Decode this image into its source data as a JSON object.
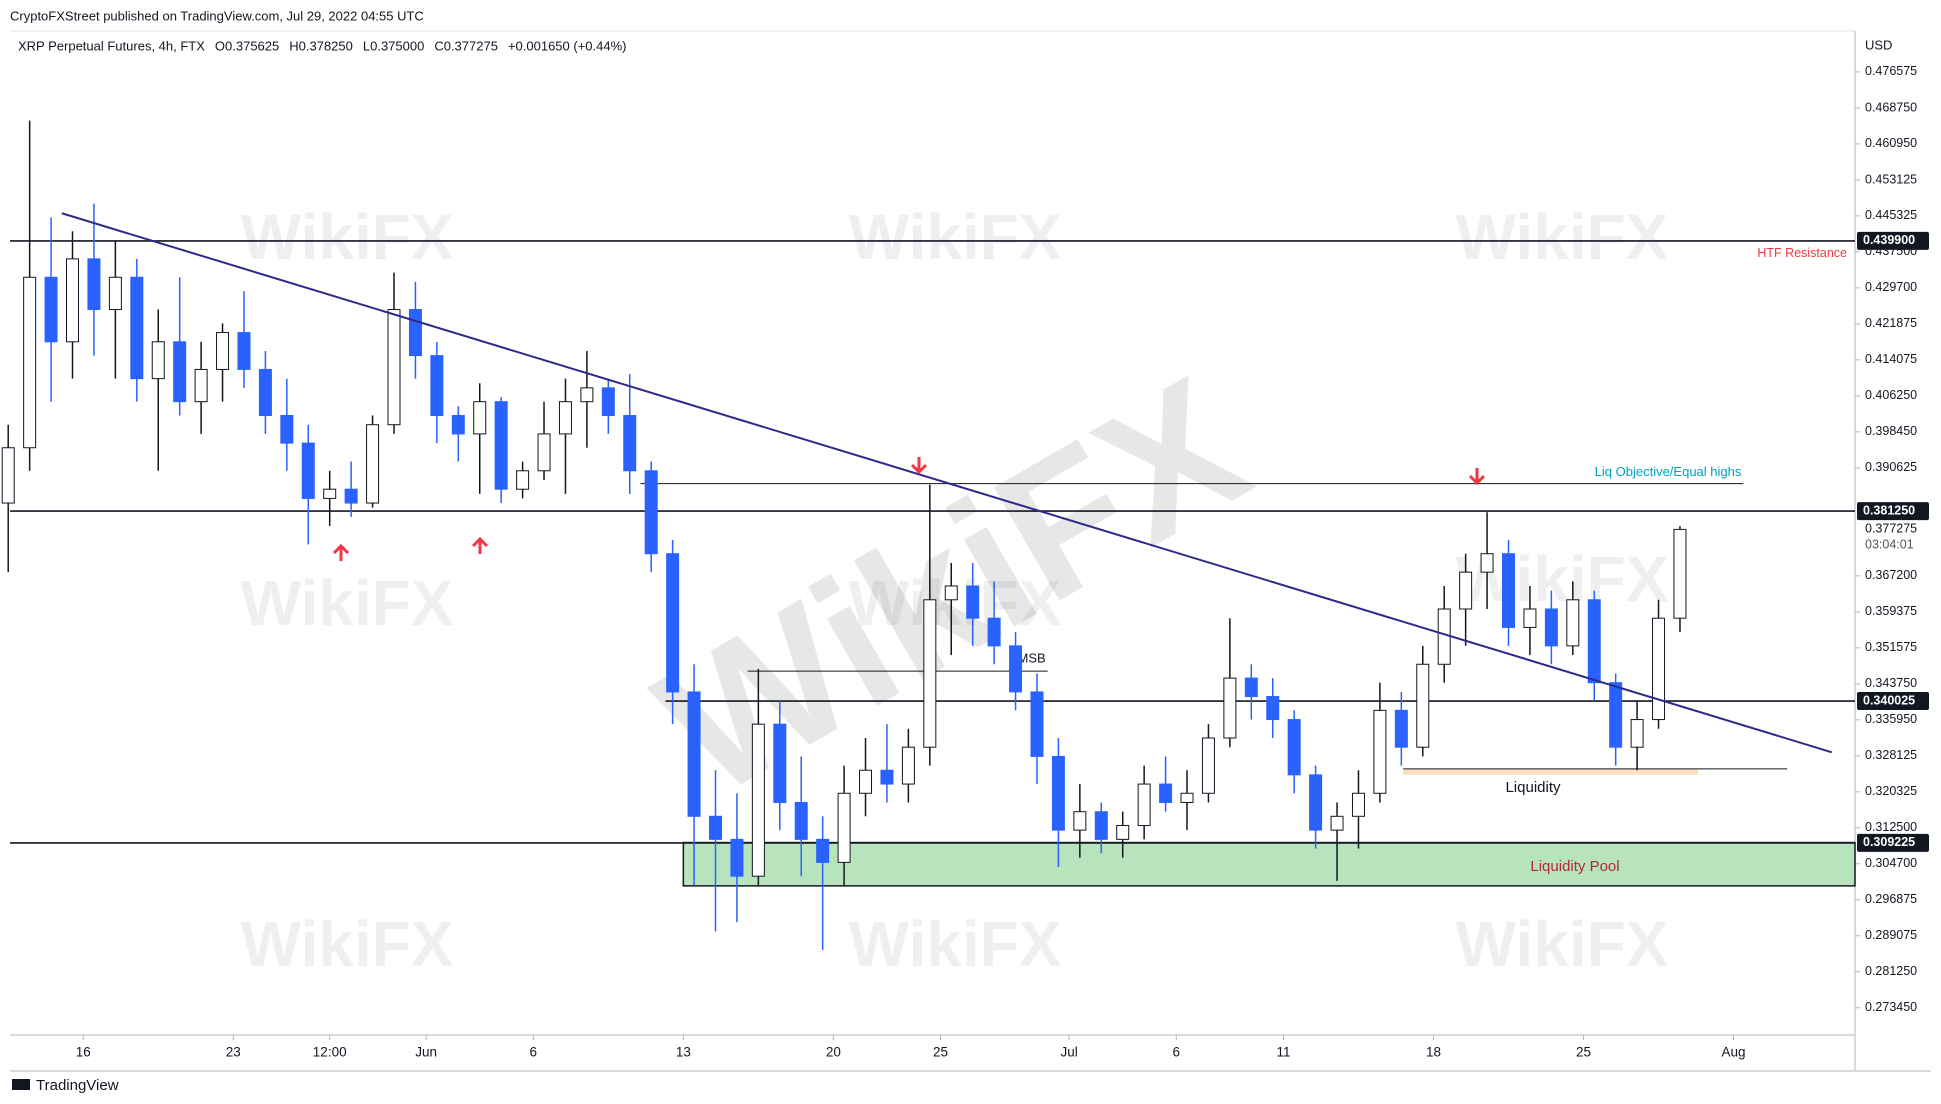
{
  "header": {
    "published": "CryptoFXStreet published on TradingView.com, Jul 29, 2022 04:55 UTC",
    "legend": [
      "XRP Perpetual Futures, 4h, FTX",
      "O0.375625",
      "H0.378250",
      "L0.375000",
      "C0.377275",
      "+0.001650 (+0.44%)"
    ],
    "currency": "USD"
  },
  "footer": {
    "brand": "TradingView"
  },
  "watermark": "WikiFX",
  "chart_data": {
    "type": "candlestick",
    "up_color": "#ffffff",
    "down_color": "#2962ff",
    "grid": false,
    "x": [
      "2022-05-12",
      "2022-05-13",
      "2022-05-14",
      "2022-05-15",
      "2022-05-16",
      "2022-05-17",
      "2022-05-18",
      "2022-05-19",
      "2022-05-20",
      "2022-05-21",
      "2022-05-22",
      "2022-05-23",
      "2022-05-24",
      "2022-05-25",
      "2022-05-26",
      "2022-05-27",
      "2022-05-28",
      "2022-05-29",
      "2022-05-30",
      "2022-05-31",
      "2022-06-01",
      "2022-06-02",
      "2022-06-03",
      "2022-06-04",
      "2022-06-05",
      "2022-06-06",
      "2022-06-07",
      "2022-06-08",
      "2022-06-09",
      "2022-06-10",
      "2022-06-11",
      "2022-06-12",
      "2022-06-13",
      "2022-06-14",
      "2022-06-15",
      "2022-06-16",
      "2022-06-17",
      "2022-06-18",
      "2022-06-19",
      "2022-06-20",
      "2022-06-21",
      "2022-06-22",
      "2022-06-23",
      "2022-06-24",
      "2022-06-25",
      "2022-06-26",
      "2022-06-27",
      "2022-06-28",
      "2022-06-29",
      "2022-06-30",
      "2022-07-01",
      "2022-07-02",
      "2022-07-03",
      "2022-07-04",
      "2022-07-05",
      "2022-07-06",
      "2022-07-07",
      "2022-07-08",
      "2022-07-09",
      "2022-07-10",
      "2022-07-11",
      "2022-07-12",
      "2022-07-13",
      "2022-07-14",
      "2022-07-15",
      "2022-07-16",
      "2022-07-17",
      "2022-07-18",
      "2022-07-19",
      "2022-07-20",
      "2022-07-21",
      "2022-07-22",
      "2022-07-23",
      "2022-07-24",
      "2022-07-25",
      "2022-07-26",
      "2022-07-27",
      "2022-07-28",
      "2022-07-29"
    ],
    "open": [
      0.383,
      0.395,
      0.432,
      0.418,
      0.436,
      0.425,
      0.432,
      0.41,
      0.418,
      0.405,
      0.412,
      0.42,
      0.412,
      0.402,
      0.396,
      0.384,
      0.386,
      0.383,
      0.4,
      0.425,
      0.415,
      0.402,
      0.398,
      0.405,
      0.386,
      0.39,
      0.398,
      0.405,
      0.408,
      0.402,
      0.39,
      0.372,
      0.342,
      0.315,
      0.31,
      0.302,
      0.335,
      0.318,
      0.31,
      0.305,
      0.32,
      0.325,
      0.322,
      0.33,
      0.362,
      0.365,
      0.358,
      0.352,
      0.342,
      0.328,
      0.312,
      0.316,
      0.31,
      0.313,
      0.322,
      0.318,
      0.32,
      0.332,
      0.345,
      0.341,
      0.336,
      0.324,
      0.312,
      0.315,
      0.32,
      0.338,
      0.33,
      0.348,
      0.36,
      0.368,
      0.372,
      0.356,
      0.36,
      0.352,
      0.362,
      0.344,
      0.33,
      0.336,
      0.358
    ],
    "high": [
      0.4,
      0.466,
      0.445,
      0.442,
      0.448,
      0.44,
      0.436,
      0.425,
      0.432,
      0.418,
      0.422,
      0.429,
      0.416,
      0.41,
      0.4,
      0.39,
      0.392,
      0.402,
      0.433,
      0.431,
      0.418,
      0.404,
      0.409,
      0.406,
      0.392,
      0.405,
      0.41,
      0.416,
      0.41,
      0.411,
      0.392,
      0.375,
      0.348,
      0.325,
      0.32,
      0.347,
      0.34,
      0.328,
      0.315,
      0.326,
      0.332,
      0.335,
      0.334,
      0.387,
      0.37,
      0.37,
      0.366,
      0.355,
      0.346,
      0.332,
      0.322,
      0.318,
      0.316,
      0.326,
      0.328,
      0.325,
      0.335,
      0.358,
      0.348,
      0.345,
      0.338,
      0.326,
      0.318,
      0.325,
      0.344,
      0.342,
      0.352,
      0.365,
      0.372,
      0.381,
      0.375,
      0.365,
      0.364,
      0.366,
      0.364,
      0.346,
      0.34,
      0.362,
      0.378
    ],
    "low": [
      0.368,
      0.39,
      0.405,
      0.41,
      0.415,
      0.41,
      0.405,
      0.39,
      0.402,
      0.398,
      0.405,
      0.408,
      0.398,
      0.39,
      0.374,
      0.378,
      0.38,
      0.382,
      0.398,
      0.41,
      0.396,
      0.392,
      0.385,
      0.383,
      0.384,
      0.388,
      0.385,
      0.395,
      0.398,
      0.385,
      0.368,
      0.335,
      0.3,
      0.29,
      0.292,
      0.3,
      0.312,
      0.302,
      0.286,
      0.3,
      0.315,
      0.318,
      0.318,
      0.326,
      0.35,
      0.352,
      0.348,
      0.338,
      0.322,
      0.304,
      0.306,
      0.307,
      0.306,
      0.31,
      0.316,
      0.312,
      0.318,
      0.33,
      0.336,
      0.332,
      0.32,
      0.308,
      0.301,
      0.308,
      0.318,
      0.326,
      0.328,
      0.344,
      0.352,
      0.36,
      0.352,
      0.35,
      0.348,
      0.35,
      0.34,
      0.326,
      0.325,
      0.334,
      0.355
    ],
    "close": [
      0.395,
      0.432,
      0.418,
      0.436,
      0.425,
      0.432,
      0.41,
      0.418,
      0.405,
      0.412,
      0.42,
      0.412,
      0.402,
      0.396,
      0.384,
      0.386,
      0.383,
      0.4,
      0.425,
      0.415,
      0.402,
      0.398,
      0.405,
      0.386,
      0.39,
      0.398,
      0.405,
      0.408,
      0.402,
      0.39,
      0.372,
      0.342,
      0.315,
      0.31,
      0.302,
      0.335,
      0.318,
      0.31,
      0.305,
      0.32,
      0.325,
      0.322,
      0.33,
      0.362,
      0.365,
      0.358,
      0.352,
      0.342,
      0.328,
      0.312,
      0.316,
      0.31,
      0.313,
      0.322,
      0.318,
      0.32,
      0.332,
      0.345,
      0.341,
      0.336,
      0.324,
      0.312,
      0.315,
      0.32,
      0.338,
      0.33,
      0.348,
      0.36,
      0.368,
      0.372,
      0.356,
      0.36,
      0.352,
      0.362,
      0.344,
      0.33,
      0.336,
      0.358,
      0.377275
    ],
    "xlim": [
      "2022-05-12T14:00",
      "2022-08-06T16:00"
    ],
    "xticks": [
      {
        "value": "2022-05-16T00:00",
        "label": "16"
      },
      {
        "value": "2022-05-23T00:00",
        "label": "23"
      },
      {
        "value": "2022-05-27T12:00",
        "label": "12:00"
      },
      {
        "value": "2022-06-01T00:00",
        "label": "Jun"
      },
      {
        "value": "2022-06-06T00:00",
        "label": "6"
      },
      {
        "value": "2022-06-13T00:00",
        "label": "13"
      },
      {
        "value": "2022-06-20T00:00",
        "label": "20"
      },
      {
        "value": "2022-06-25T00:00",
        "label": "25"
      },
      {
        "value": "2022-07-01T00:00",
        "label": "Jul"
      },
      {
        "value": "2022-07-06T00:00",
        "label": "6"
      },
      {
        "value": "2022-07-11T00:00",
        "label": "11"
      },
      {
        "value": "2022-07-18T00:00",
        "label": "18"
      },
      {
        "value": "2022-07-25T00:00",
        "label": "25"
      },
      {
        "value": "2022-08-01T00:00",
        "label": "Aug"
      }
    ],
    "ylim": [
      0.26753,
      0.48546
    ],
    "yticks": [
      0.476575,
      {
        "value": 0.46875,
        "label": "0.468750"
      },
      {
        "value": 0.46095,
        "label": "0.460950"
      },
      0.453125,
      0.445325,
      {
        "value": 0.4375,
        "label": "0.437500"
      },
      {
        "value": 0.4297,
        "label": "0.429700"
      },
      0.421875,
      0.414075,
      {
        "value": 0.40625,
        "label": "0.406250"
      },
      {
        "value": 0.39845,
        "label": "0.398450"
      },
      0.390625,
      {
        "value": 0.3672,
        "label": "0.367200"
      },
      0.359375,
      0.351575,
      {
        "value": 0.34375,
        "label": "0.343750"
      },
      {
        "value": 0.33595,
        "label": "0.335950"
      },
      0.328125,
      0.320325,
      {
        "value": 0.3125,
        "label": "0.312500"
      },
      {
        "value": 0.3047,
        "label": "0.304700"
      },
      0.296875,
      0.289075,
      {
        "value": 0.28125,
        "label": "0.281250"
      },
      {
        "value": 0.27345,
        "label": "0.273450"
      }
    ],
    "last_price": {
      "value": 0.377275,
      "countdown": "03:04:01"
    },
    "levels": [
      {
        "value": 0.4399,
        "label": "0.439900",
        "name": "HTF Resistance"
      },
      {
        "value": 0.38125,
        "label": "0.381250"
      },
      {
        "value": 0.340025,
        "label": "0.340025",
        "from": "2022-06-12T04:00"
      },
      {
        "value": 0.309225,
        "label": "0.309225"
      }
    ],
    "trendline": {
      "x": [
        "2022-05-15T00:00",
        "2022-08-05T14:00"
      ],
      "y": [
        0.4459,
        0.3289
      ]
    },
    "liq_objective": {
      "label": "Liq Objective/Equal highs",
      "x": [
        "2022-06-11T00:00",
        "2022-08-01T11:00"
      ],
      "y": [
        0.3872,
        0.3872
      ]
    },
    "msb": {
      "label": "MSB",
      "x": [
        "2022-06-16T00:00",
        "2022-06-30T00:00"
      ],
      "y": [
        0.3465,
        0.3465
      ]
    },
    "liquidity": {
      "label": "Liquidity",
      "x": [
        "2022-07-16T14:00",
        "2022-08-03T12:00"
      ],
      "y": [
        0.3253,
        0.3253
      ]
    },
    "liquidity_pool": {
      "label": "Liquidity Pool",
      "x": [
        "2022-06-13T00:00",
        "2022-08-06T16:00"
      ],
      "y": [
        0.2999,
        0.3093
      ]
    }
  }
}
